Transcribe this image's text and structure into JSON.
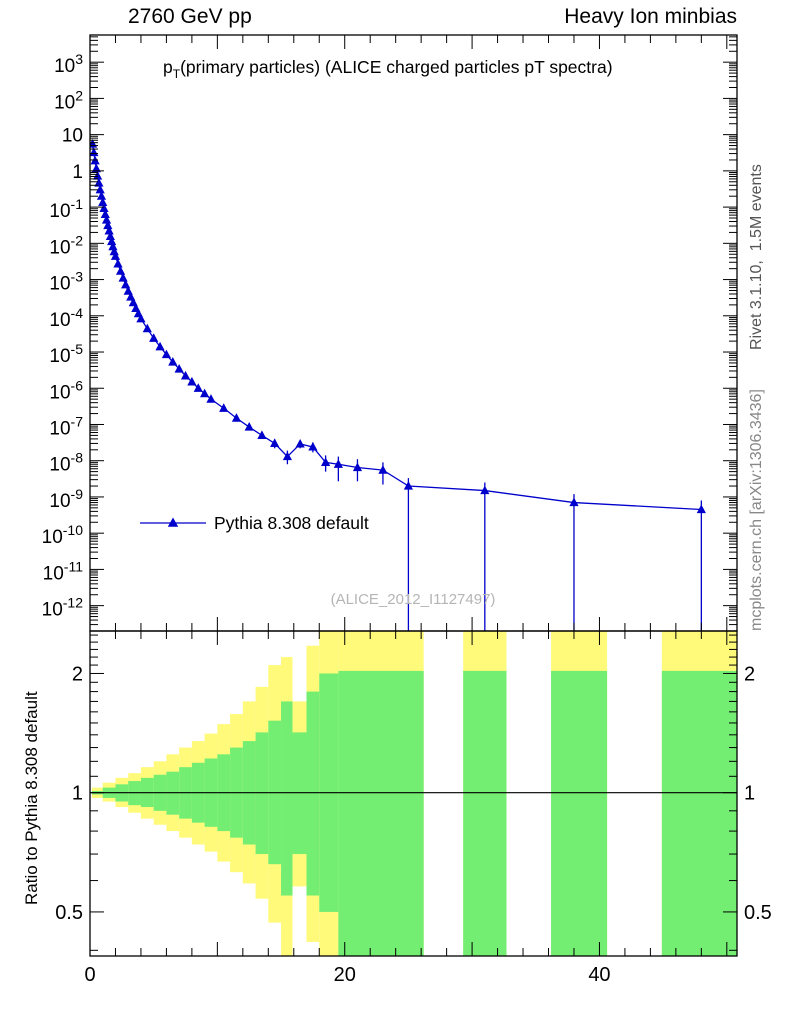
{
  "header": {
    "left_title": "2760 GeV pp",
    "right_title": "Heavy Ion minbias"
  },
  "watermarks": {
    "rivet": "Rivet 3.1.10,  1.5M events",
    "mcplots": "mcplots.cern.ch [arXiv:1306.3436]",
    "analysis": "(ALICE_2012_I1127497)"
  },
  "main_plot": {
    "title_p": "p",
    "title_sub": "T",
    "title_rest": "(primary particles) (ALICE charged particles pT spectra)",
    "legend_label": "Pythia 8.308 default"
  },
  "ratio_plot": {
    "ylabel": "Ratio to Pythia 8.308 default"
  },
  "chart_data": [
    {
      "type": "scatter",
      "title": "pT(primary particles) (ALICE charged particles pT spectra)",
      "yscale": "log",
      "xlim": [
        0,
        50.8
      ],
      "ylog_lim": [
        -12.7,
        3.75
      ],
      "yticks_exponents": [
        3,
        2,
        1,
        0,
        -1,
        -2,
        -3,
        -4,
        -5,
        -6,
        -7,
        -8,
        -9,
        -10,
        -11,
        -12
      ],
      "xticks_major": [
        0,
        10,
        20,
        30,
        40,
        50
      ],
      "xticks_labeled": [
        0,
        20,
        40
      ],
      "xticks_minor_step": 2,
      "series": [
        {
          "name": "Pythia 8.308 default",
          "color": "#0000cc",
          "marker": "triangle-up",
          "points": [
            [
              0.2,
              5.5
            ],
            [
              0.3,
              3.2
            ],
            [
              0.4,
              1.9
            ],
            [
              0.5,
              1.15
            ],
            [
              0.6,
              0.72
            ],
            [
              0.7,
              0.46
            ],
            [
              0.8,
              0.3
            ],
            [
              0.9,
              0.2
            ],
            [
              1.0,
              0.135
            ],
            [
              1.1,
              0.092
            ],
            [
              1.2,
              0.063
            ],
            [
              1.3,
              0.044
            ],
            [
              1.4,
              0.031
            ],
            [
              1.5,
              0.022
            ],
            [
              1.6,
              0.0155
            ],
            [
              1.7,
              0.0112
            ],
            [
              1.8,
              0.0081
            ],
            [
              1.9,
              0.0059
            ],
            [
              2.0,
              0.0044
            ],
            [
              2.2,
              0.0027
            ],
            [
              2.4,
              0.0017
            ],
            [
              2.6,
              0.0011
            ],
            [
              2.8,
              0.00072
            ],
            [
              3.0,
              0.00048
            ],
            [
              3.2,
              0.00033
            ],
            [
              3.4,
              0.00023
            ],
            [
              3.6,
              0.00016
            ],
            [
              3.8,
              0.000115
            ],
            [
              4.0,
              8.3e-05
            ],
            [
              4.5,
              4.4e-05
            ],
            [
              5.0,
              2.4e-05
            ],
            [
              5.5,
              1.4e-05
            ],
            [
              6.0,
              8.5e-06
            ],
            [
              6.5,
              5.3e-06
            ],
            [
              7.0,
              3.4e-06
            ],
            [
              7.5,
              2.2e-06
            ],
            [
              8.0,
              1.5e-06
            ],
            [
              8.5,
              1e-06
            ],
            [
              9.0,
              7.1e-07
            ],
            [
              9.5,
              5e-07
            ],
            [
              10.5,
              2.8e-07
            ],
            [
              11.5,
              1.5e-07
            ],
            [
              12.5,
              8.5e-08
            ],
            [
              13.5,
              5e-08,
              4e-08,
              6.2e-08
            ],
            [
              14.5,
              3e-08,
              2.2e-08,
              3.9e-08
            ],
            [
              15.5,
              1.3e-08,
              8e-09,
              1.9e-08
            ],
            [
              16.5,
              2.9e-08,
              2.2e-08,
              3.7e-08
            ],
            [
              17.5,
              2.4e-08,
              1.7e-08,
              3.2e-08
            ],
            [
              18.5,
              9e-09,
              5e-09,
              1.4e-08
            ],
            [
              19.5,
              8e-09,
              2.7e-09,
              1.3e-08
            ],
            [
              21,
              6.5e-09,
              2.7e-09,
              1.1e-08
            ],
            [
              23,
              5.5e-09,
              2.2e-09,
              9e-09
            ],
            [
              25,
              2e-09,
              1e-13,
              3.3e-09
            ],
            [
              31,
              1.5e-09,
              1e-13,
              2.5e-09
            ],
            [
              38,
              7e-10,
              1e-13,
              1.2e-09
            ],
            [
              48,
              4.5e-10,
              1e-13,
              8e-10
            ]
          ]
        }
      ]
    },
    {
      "type": "area",
      "ylabel": "Ratio to Pythia 8.308 default",
      "yscale": "log",
      "ylim": [
        0.387,
        2.56
      ],
      "yticks_labeled": [
        0.5,
        1,
        2
      ],
      "yticks_minor": [
        0.4,
        0.6,
        0.7,
        0.8,
        0.9,
        1.1,
        1.2,
        1.3,
        1.4,
        1.5,
        1.6,
        1.7,
        1.8,
        1.9,
        2.1,
        2.2,
        2.3,
        2.4,
        2.5
      ],
      "reference_line": 1,
      "band_colors": {
        "inner": "#73EE73",
        "outer": "#FFFA7A"
      },
      "bands": [
        [
          0.15,
          1,
          0.99,
          1.01,
          0.97,
          1.03
        ],
        [
          1,
          2,
          0.97,
          1.03,
          0.95,
          1.06
        ],
        [
          2,
          3,
          0.95,
          1.05,
          0.92,
          1.09
        ],
        [
          3,
          4,
          0.93,
          1.07,
          0.89,
          1.12
        ],
        [
          4,
          5,
          0.92,
          1.09,
          0.86,
          1.16
        ],
        [
          5,
          6,
          0.9,
          1.11,
          0.83,
          1.2
        ],
        [
          6,
          7,
          0.88,
          1.13,
          0.8,
          1.25
        ],
        [
          7,
          8,
          0.86,
          1.16,
          0.77,
          1.3
        ],
        [
          8,
          9,
          0.84,
          1.19,
          0.74,
          1.35
        ],
        [
          9,
          10,
          0.82,
          1.22,
          0.71,
          1.41
        ],
        [
          10,
          11,
          0.8,
          1.25,
          0.67,
          1.49
        ],
        [
          11,
          12,
          0.77,
          1.3,
          0.63,
          1.58
        ],
        [
          12,
          13,
          0.74,
          1.35,
          0.59,
          1.7
        ],
        [
          13,
          14,
          0.7,
          1.42,
          0.54,
          1.85
        ],
        [
          14,
          15,
          0.66,
          1.52,
          0.47,
          2.1
        ],
        [
          15,
          15.9,
          0.55,
          1.7,
          0.387,
          2.2
        ],
        [
          15.9,
          17,
          0.7,
          1.42,
          0.58,
          1.7
        ],
        [
          17,
          18,
          0.55,
          1.8,
          0.42,
          2.35
        ],
        [
          18,
          19.5,
          0.5,
          2.0,
          0.387,
          2.56
        ],
        [
          19.5,
          26.2,
          0.387,
          2.03,
          0.387,
          2.56
        ],
        [
          29.3,
          32.7,
          0.387,
          2.03,
          0.387,
          2.56
        ],
        [
          36.2,
          40.6,
          0.387,
          2.03,
          0.387,
          2.56
        ],
        [
          44.9,
          50.8,
          0.387,
          2.03,
          0.387,
          2.56
        ]
      ]
    }
  ]
}
